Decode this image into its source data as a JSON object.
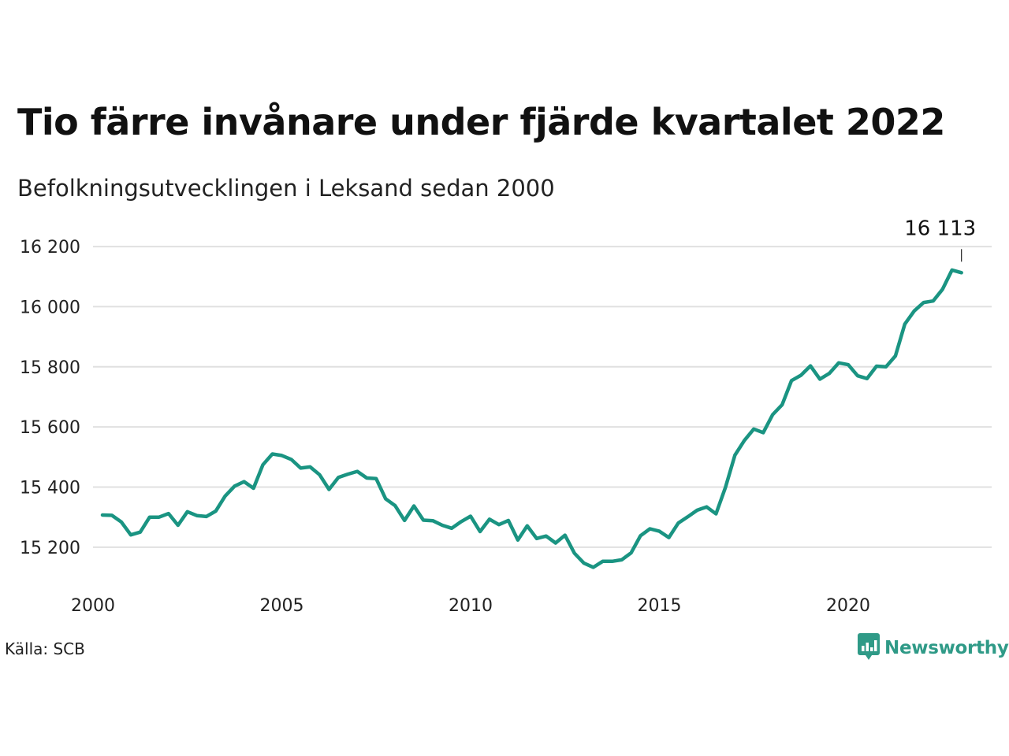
{
  "header": {
    "title": "Tio färre invånare under fjärde kvartalet 2022",
    "subtitle": "Befolkningsutvecklingen i Leksand sedan 2000"
  },
  "footer": {
    "source": "Källa: SCB",
    "brand": "Newsworthy",
    "brand_icon": "bar-chart-speech-bubble-icon"
  },
  "colors": {
    "line": "#1a9482",
    "grid": "#e0e0e0",
    "brand": "#2f9a87"
  },
  "chart_data": {
    "type": "line",
    "title": "Tio färre invånare under fjärde kvartalet 2022",
    "subtitle": "Befolkningsutvecklingen i Leksand sedan 2000",
    "xlabel": "",
    "ylabel": "",
    "grid": true,
    "xlim": [
      2000,
      2023.8
    ],
    "ylim": [
      15100,
      16250
    ],
    "x_ticks": [
      {
        "value": 2000,
        "label": "2000"
      },
      {
        "value": 2005,
        "label": "2005"
      },
      {
        "value": 2010,
        "label": "2010"
      },
      {
        "value": 2015,
        "label": "2015"
      },
      {
        "value": 2020,
        "label": "2020"
      }
    ],
    "y_ticks": [
      {
        "value": 15200,
        "label": "15 200"
      },
      {
        "value": 15400,
        "label": "15 400"
      },
      {
        "value": 15600,
        "label": "15 600"
      },
      {
        "value": 15800,
        "label": "15 800"
      },
      {
        "value": 16000,
        "label": "16 000"
      },
      {
        "value": 16200,
        "label": "16 200"
      }
    ],
    "end_label": "16 113",
    "series": [
      {
        "x": [
          2000.25,
          2000.5,
          2000.75,
          2001.0,
          2001.25,
          2001.5,
          2001.75,
          2002.0,
          2002.25,
          2002.5,
          2002.75,
          2003.0,
          2003.25,
          2003.5,
          2003.75,
          2004.0,
          2004.25,
          2004.5,
          2004.75,
          2005.0,
          2005.25,
          2005.5,
          2005.75,
          2006.0,
          2006.25,
          2006.5,
          2006.75,
          2007.0,
          2007.25,
          2007.5,
          2007.75,
          2008.0,
          2008.25,
          2008.5,
          2008.75,
          2009.0,
          2009.25,
          2009.5,
          2009.75,
          2010.0,
          2010.25,
          2010.5,
          2010.75,
          2011.0,
          2011.25,
          2011.5,
          2011.75,
          2012.0,
          2012.25,
          2012.5,
          2012.75,
          2013.0,
          2013.25,
          2013.5,
          2013.75,
          2014.0,
          2014.25,
          2014.5,
          2014.75,
          2015.0,
          2015.25,
          2015.5,
          2015.75,
          2016.0,
          2016.25,
          2016.5,
          2016.75,
          2017.0,
          2017.25,
          2017.5,
          2017.75,
          2018.0,
          2018.25,
          2018.5,
          2018.75,
          2019.0,
          2019.25,
          2019.5,
          2019.75,
          2020.0,
          2020.25,
          2020.5,
          2020.75,
          2021.0,
          2021.25,
          2021.5,
          2021.75,
          2022.0,
          2022.25,
          2022.5,
          2022.75,
          2023.0
        ],
        "y": [
          15307,
          15306,
          15284,
          15241,
          15250,
          15300,
          15300,
          15312,
          15273,
          15318,
          15305,
          15302,
          15320,
          15370,
          15403,
          15418,
          15396,
          15474,
          15510,
          15505,
          15492,
          15463,
          15467,
          15441,
          15392,
          15432,
          15443,
          15452,
          15430,
          15428,
          15361,
          15338,
          15289,
          15337,
          15290,
          15288,
          15273,
          15263,
          15285,
          15303,
          15252,
          15293,
          15275,
          15289,
          15224,
          15271,
          15229,
          15237,
          15214,
          15240,
          15180,
          15147,
          15133,
          15153,
          15153,
          15158,
          15181,
          15238,
          15261,
          15253,
          15232,
          15280,
          15301,
          15323,
          15334,
          15311,
          15399,
          15506,
          15555,
          15593,
          15581,
          15641,
          15674,
          15754,
          15772,
          15803,
          15759,
          15778,
          15813,
          15807,
          15770,
          15761,
          15802,
          15800,
          15836,
          15942,
          15986,
          16014,
          16019,
          16058,
          16122,
          16113
        ]
      }
    ]
  }
}
